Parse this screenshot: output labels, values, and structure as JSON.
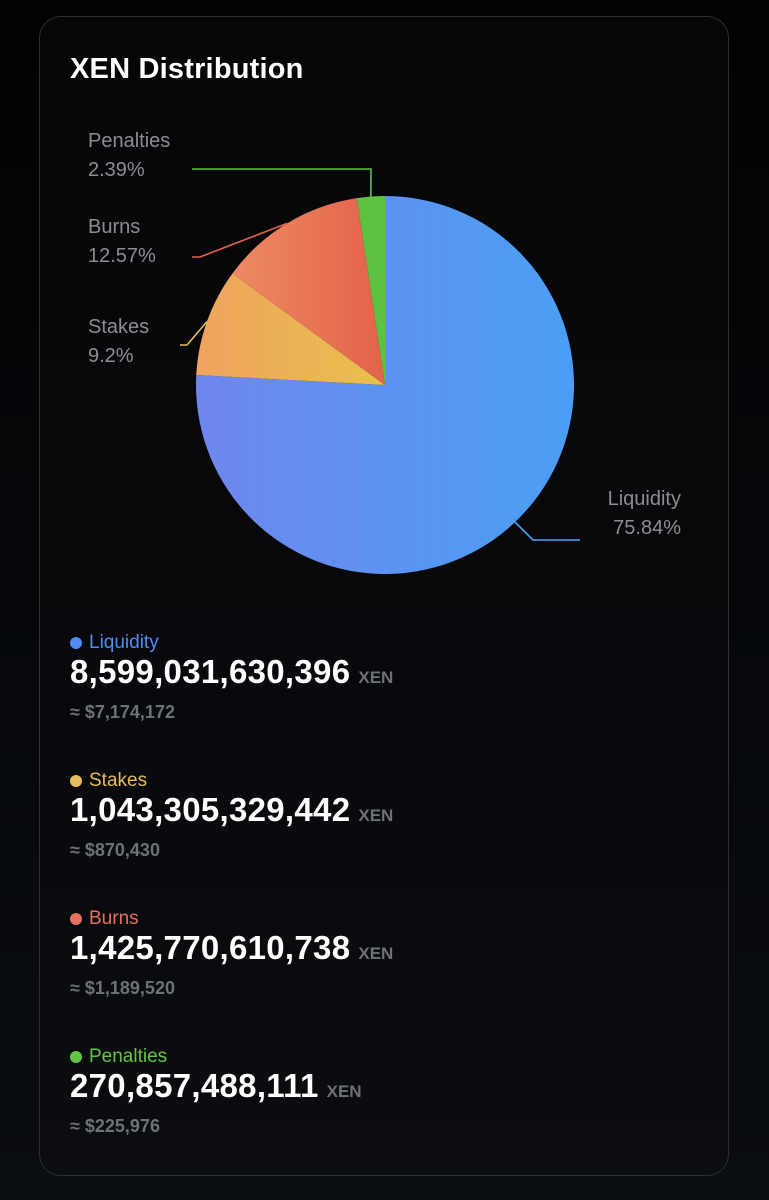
{
  "card": {
    "title": "XEN Distribution"
  },
  "chart_data": {
    "type": "pie",
    "title": "",
    "slices": [
      {
        "name": "Liquidity",
        "percent": 75.84,
        "label": "75.84%",
        "color": "#4a9ff5",
        "color_alt": "#6f86ee"
      },
      {
        "name": "Stakes",
        "percent": 9.2,
        "label": "9.2%",
        "color": "#e8c04c",
        "color_alt": "#f0a35f"
      },
      {
        "name": "Burns",
        "percent": 12.57,
        "label": "12.57%",
        "color": "#e4624a",
        "color_alt": "#ec8a63"
      },
      {
        "name": "Penalties",
        "percent": 2.39,
        "label": "2.39%",
        "color": "#5cc241",
        "color_alt": "#5cc241"
      }
    ],
    "start_angle_deg": 0,
    "direction": "clockwise",
    "labels_position": "outside-with-leader-lines",
    "legend": "none"
  },
  "legend": {
    "items": [
      {
        "name": "Liquidity",
        "color": "#4f8cf3",
        "amount": "8,599,031,630,396",
        "unit": "XEN",
        "usd": "≈ $7,174,172"
      },
      {
        "name": "Stakes",
        "color": "#e8bc5a",
        "amount": "1,043,305,329,442",
        "unit": "XEN",
        "usd": "≈ $870,430"
      },
      {
        "name": "Burns",
        "color": "#e6705a",
        "amount": "1,425,770,610,738",
        "unit": "XEN",
        "usd": "≈ $1,189,520"
      },
      {
        "name": "Penalties",
        "color": "#64c44a",
        "amount": "270,857,488,111",
        "unit": "XEN",
        "usd": "≈ $225,976"
      }
    ]
  }
}
